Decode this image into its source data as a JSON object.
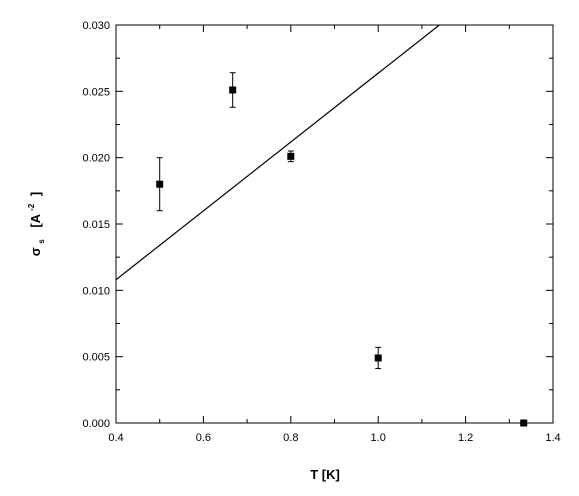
{
  "chart_data": {
    "type": "scatter",
    "title": "",
    "xlabel": "T [K]",
    "ylabel": {
      "symbol": "σ",
      "subscript": "s",
      "unit_open": "[A",
      "unit_power": "-2",
      "unit_close": "]"
    },
    "xlim": [
      0.4,
      1.4
    ],
    "ylim": [
      0.0,
      0.03
    ],
    "grid": false,
    "legend": "none",
    "x_ticks": [
      "0.4",
      "0.6",
      "0.8",
      "1.0",
      "1.2",
      "1.4"
    ],
    "y_ticks": [
      "0.000",
      "0.005",
      "0.010",
      "0.015",
      "0.020",
      "0.025",
      "0.030"
    ],
    "series": [
      {
        "type": "scatter",
        "marker": "square",
        "points": [
          {
            "x": 0.5,
            "y": 0.018,
            "err": 0.002
          },
          {
            "x": 0.667,
            "y": 0.0251,
            "err": 0.0013
          },
          {
            "x": 0.8,
            "y": 0.0201,
            "err": 0.0004
          },
          {
            "x": 1.0,
            "y": 0.0049,
            "err": 0.0008
          },
          {
            "x": 1.333,
            "y": 0.0,
            "err": 0.0
          }
        ]
      },
      {
        "type": "line",
        "points": [
          {
            "x": 0.4,
            "y": 0.0108
          },
          {
            "x": 1.14,
            "y": 0.03
          }
        ]
      }
    ],
    "colors": {
      "ink": "#000000",
      "background": "#ffffff"
    }
  }
}
